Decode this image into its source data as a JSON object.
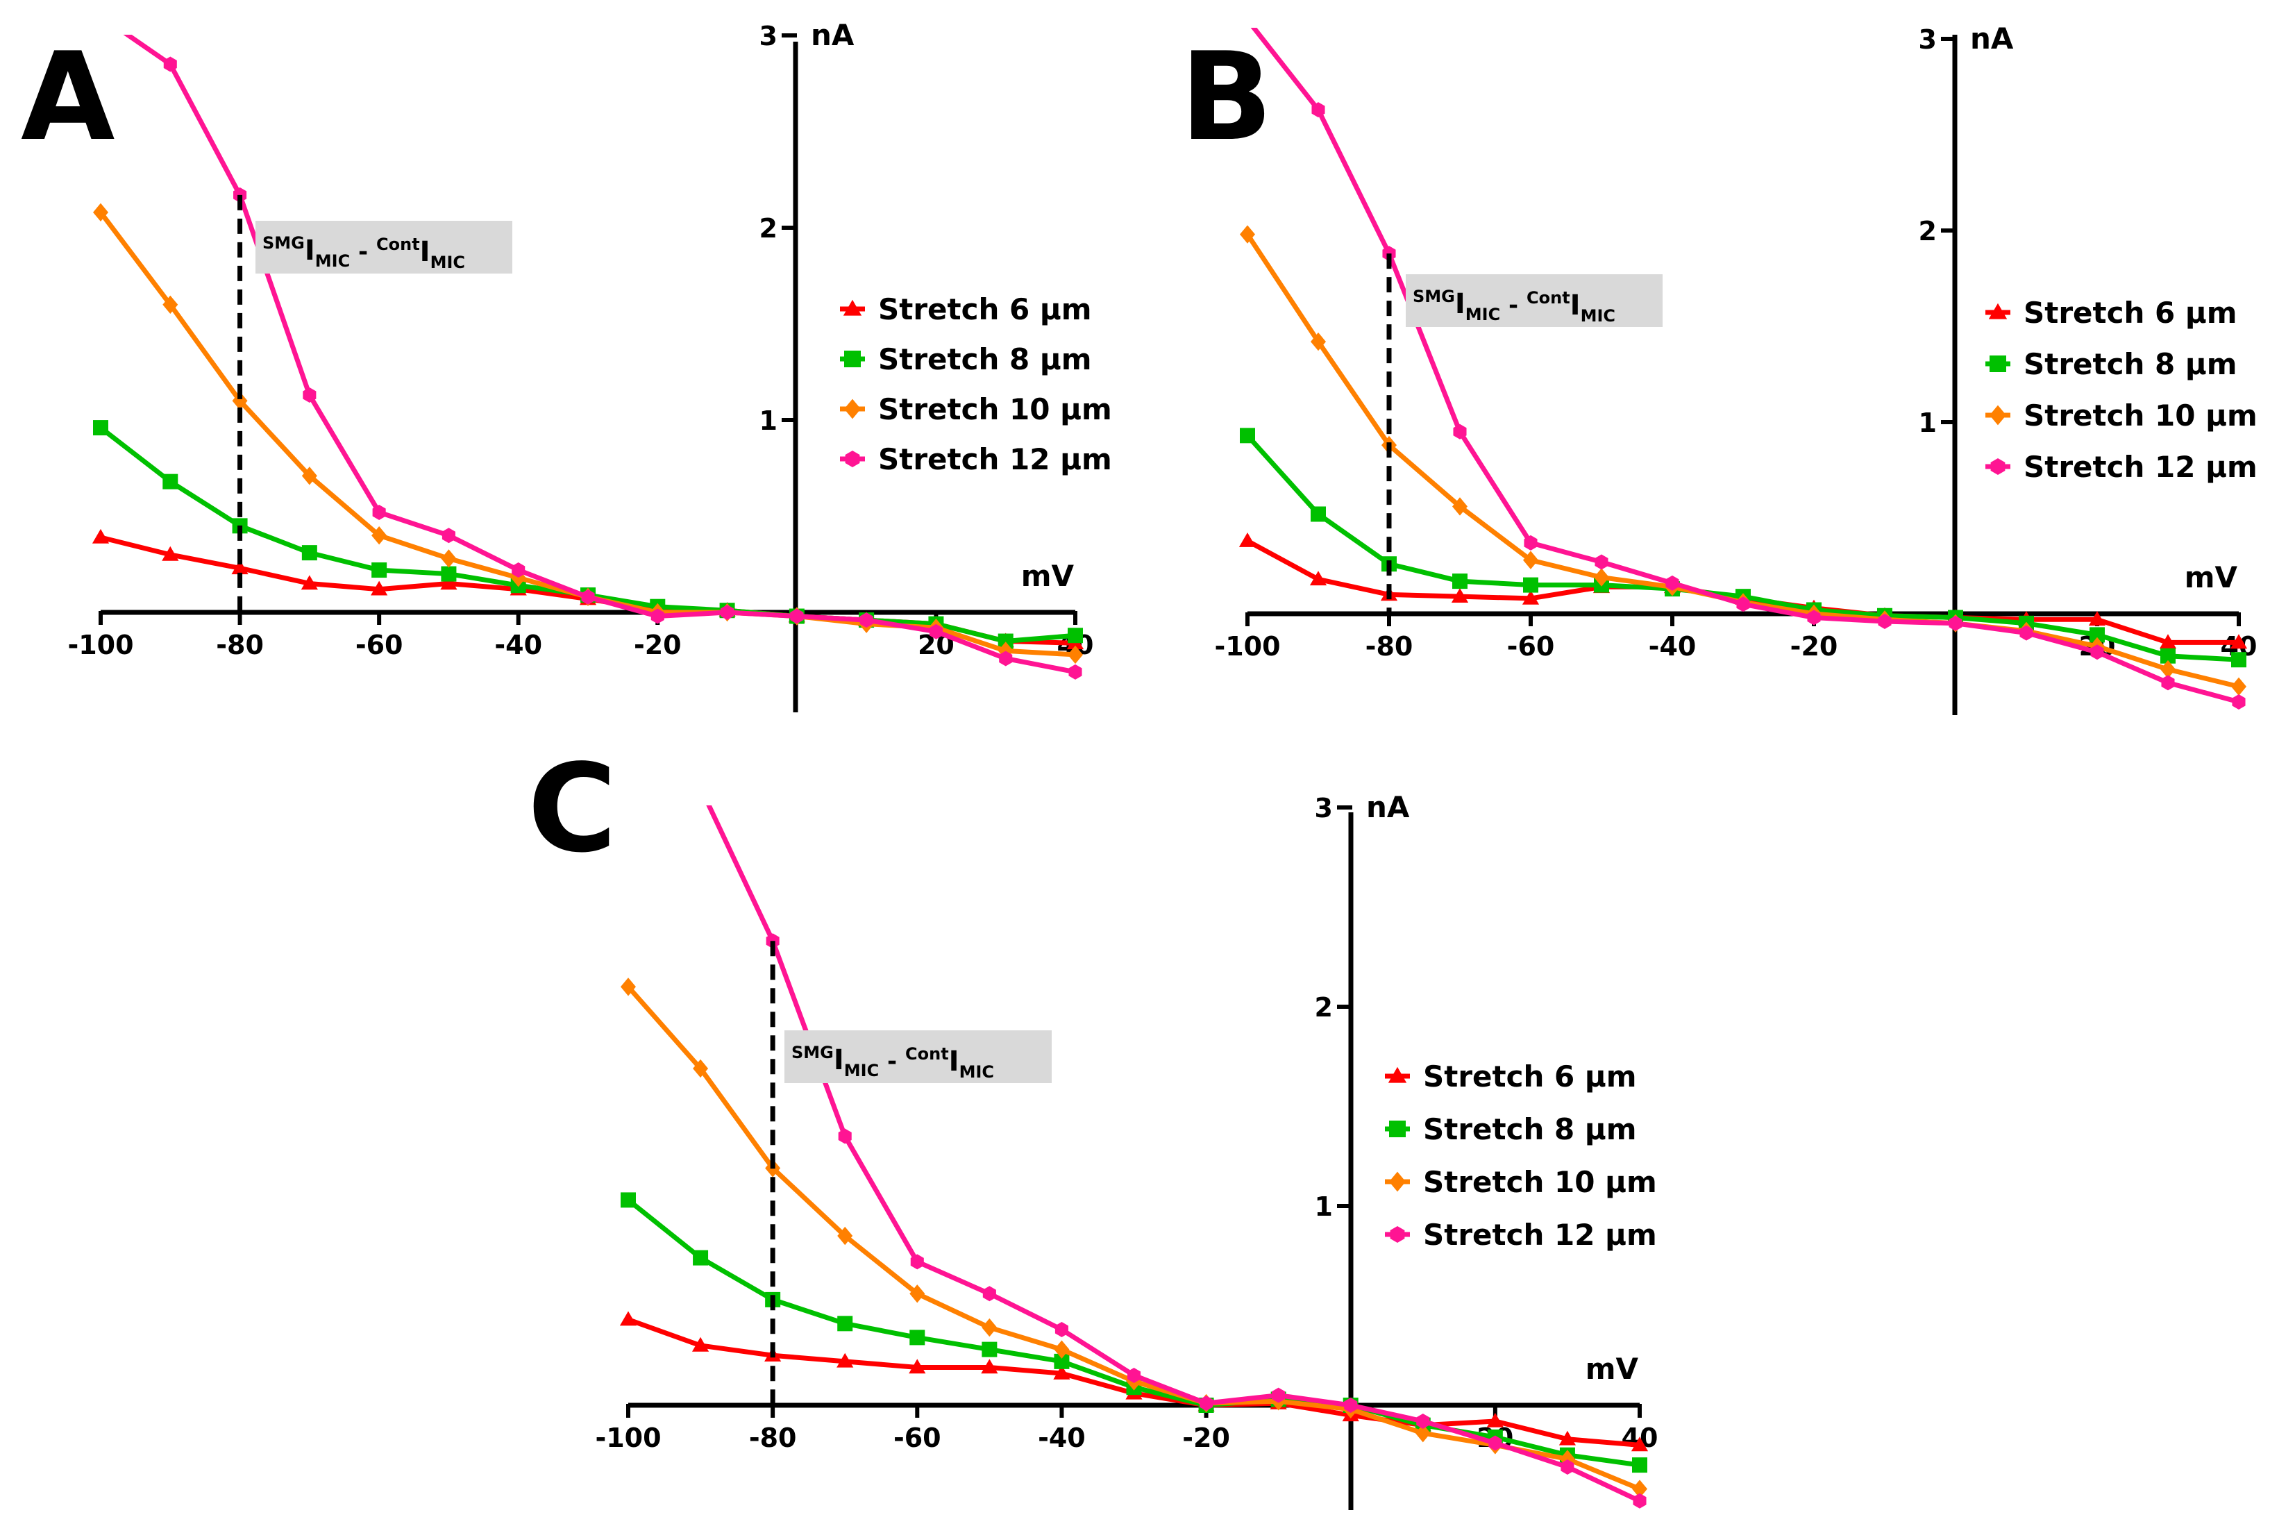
{
  "chart_data": [
    {
      "type": "line",
      "panel": "A",
      "x_unit": "mV",
      "y_unit": "nA",
      "xlim": [
        -100,
        40
      ],
      "ylim": [
        -0.5,
        3
      ],
      "x_ticks": [
        -100,
        -80,
        -60,
        -40,
        -20,
        20,
        40
      ],
      "y_ticks": [
        1,
        2,
        3
      ],
      "annotation": {
        "sup1": "SMG",
        "main1": "I",
        "sub1": "MIC",
        "sep": " - ",
        "sup2": "Cont",
        "main2": "I",
        "sub2": "MIC",
        "x": -80
      },
      "legend_position": "right",
      "x": [
        -100,
        -90,
        -80,
        -70,
        -60,
        -50,
        -40,
        -30,
        -20,
        -10,
        0,
        10,
        20,
        30,
        40
      ],
      "series": [
        {
          "name": "Stretch 6 µm",
          "marker": "triangle",
          "color": "#ff0000",
          "values": [
            0.39,
            0.3,
            0.23,
            0.15,
            0.12,
            0.15,
            0.12,
            0.07,
            0.01,
            0.01,
            -0.02,
            -0.04,
            -0.06,
            -0.15,
            -0.16
          ]
        },
        {
          "name": "Stretch 8 µm",
          "marker": "square",
          "color": "#00c000",
          "values": [
            0.96,
            0.68,
            0.45,
            0.31,
            0.22,
            0.2,
            0.14,
            0.09,
            0.03,
            0.01,
            -0.02,
            -0.04,
            -0.06,
            -0.15,
            -0.12
          ]
        },
        {
          "name": "Stretch 10 µm",
          "marker": "diamond",
          "color": "#ff8000",
          "values": [
            2.08,
            1.6,
            1.1,
            0.71,
            0.4,
            0.28,
            0.18,
            0.08,
            0.0,
            0.0,
            -0.02,
            -0.06,
            -0.08,
            -0.2,
            -0.22
          ]
        },
        {
          "name": "Stretch 12 µm",
          "marker": "hexagon",
          "color": "#ff1493",
          "values": [
            3.1,
            2.85,
            2.17,
            1.13,
            0.52,
            0.4,
            0.22,
            0.08,
            -0.02,
            0.0,
            -0.02,
            -0.04,
            -0.1,
            -0.24,
            -0.31
          ]
        }
      ]
    },
    {
      "type": "line",
      "panel": "B",
      "x_unit": "mV",
      "y_unit": "nA",
      "xlim": [
        -100,
        40
      ],
      "ylim": [
        -0.5,
        3
      ],
      "x_ticks": [
        -100,
        -80,
        -60,
        -40,
        -20,
        20,
        40
      ],
      "y_ticks": [
        1,
        2,
        3
      ],
      "annotation": {
        "sup1": "SMG",
        "main1": "I",
        "sub1": "MIC",
        "sep": " - ",
        "sup2": "Cont",
        "main2": "I",
        "sub2": "MIC",
        "x": -80
      },
      "legend_position": "right",
      "x": [
        -100,
        -90,
        -80,
        -70,
        -60,
        -50,
        -40,
        -30,
        -20,
        -10,
        0,
        10,
        20,
        30,
        40
      ],
      "series": [
        {
          "name": "Stretch 6 µm",
          "marker": "triangle",
          "color": "#ff0000",
          "values": [
            0.38,
            0.18,
            0.1,
            0.09,
            0.08,
            0.14,
            0.14,
            0.08,
            0.03,
            -0.01,
            -0.02,
            -0.03,
            -0.03,
            -0.15,
            -0.15
          ]
        },
        {
          "name": "Stretch 8 µm",
          "marker": "square",
          "color": "#00c000",
          "values": [
            0.93,
            0.52,
            0.26,
            0.17,
            0.15,
            0.15,
            0.13,
            0.09,
            0.02,
            -0.01,
            -0.02,
            -0.05,
            -0.11,
            -0.22,
            -0.24
          ]
        },
        {
          "name": "Stretch 10 µm",
          "marker": "diamond",
          "color": "#ff8000",
          "values": [
            1.98,
            1.42,
            0.88,
            0.56,
            0.28,
            0.19,
            0.14,
            0.06,
            0.0,
            -0.03,
            -0.05,
            -0.09,
            -0.17,
            -0.29,
            -0.38
          ]
        },
        {
          "name": "Stretch 12 µm",
          "marker": "hexagon",
          "color": "#ff1493",
          "values": [
            3.1,
            2.63,
            1.88,
            0.95,
            0.37,
            0.27,
            0.16,
            0.05,
            -0.02,
            -0.04,
            -0.05,
            -0.1,
            -0.2,
            -0.36,
            -0.46
          ]
        }
      ]
    },
    {
      "type": "line",
      "panel": "C",
      "x_unit": "mV",
      "y_unit": "nA",
      "xlim": [
        -100,
        40
      ],
      "ylim": [
        -0.5,
        3
      ],
      "x_ticks": [
        -100,
        -80,
        -60,
        -40,
        -20,
        20,
        40
      ],
      "y_ticks": [
        1,
        2,
        3
      ],
      "annotation": {
        "sup1": "SMG",
        "main1": "I",
        "sub1": "MIC",
        "sep": " - ",
        "sup2": "Cont",
        "main2": "I",
        "sub2": "MIC",
        "x": -80
      },
      "legend_position": "right",
      "x": [
        -100,
        -90,
        -80,
        -70,
        -60,
        -50,
        -40,
        -30,
        -20,
        -10,
        0,
        10,
        20,
        30,
        40
      ],
      "series": [
        {
          "name": "Stretch 6 µm",
          "marker": "triangle",
          "color": "#ff0000",
          "values": [
            0.43,
            0.3,
            0.25,
            0.22,
            0.19,
            0.19,
            0.16,
            0.06,
            0.0,
            0.01,
            -0.05,
            -0.1,
            -0.08,
            -0.17,
            -0.2
          ]
        },
        {
          "name": "Stretch 8 µm",
          "marker": "square",
          "color": "#00c000",
          "values": [
            1.03,
            0.74,
            0.53,
            0.41,
            0.34,
            0.28,
            0.22,
            0.09,
            0.0,
            0.03,
            0.0,
            -0.1,
            -0.16,
            -0.25,
            -0.3
          ]
        },
        {
          "name": "Stretch 10 µm",
          "marker": "diamond",
          "color": "#ff8000",
          "values": [
            2.1,
            1.69,
            1.19,
            0.85,
            0.56,
            0.39,
            0.28,
            0.12,
            0.01,
            0.02,
            -0.02,
            -0.14,
            -0.2,
            -0.27,
            -0.42
          ]
        },
        {
          "name": "Stretch 12 µm",
          "marker": "hexagon",
          "color": "#ff1493",
          "values": [
            3.1,
            3.1,
            2.33,
            1.35,
            0.72,
            0.56,
            0.38,
            0.15,
            0.01,
            0.05,
            0.0,
            -0.08,
            -0.19,
            -0.31,
            -0.48
          ]
        }
      ]
    }
  ]
}
